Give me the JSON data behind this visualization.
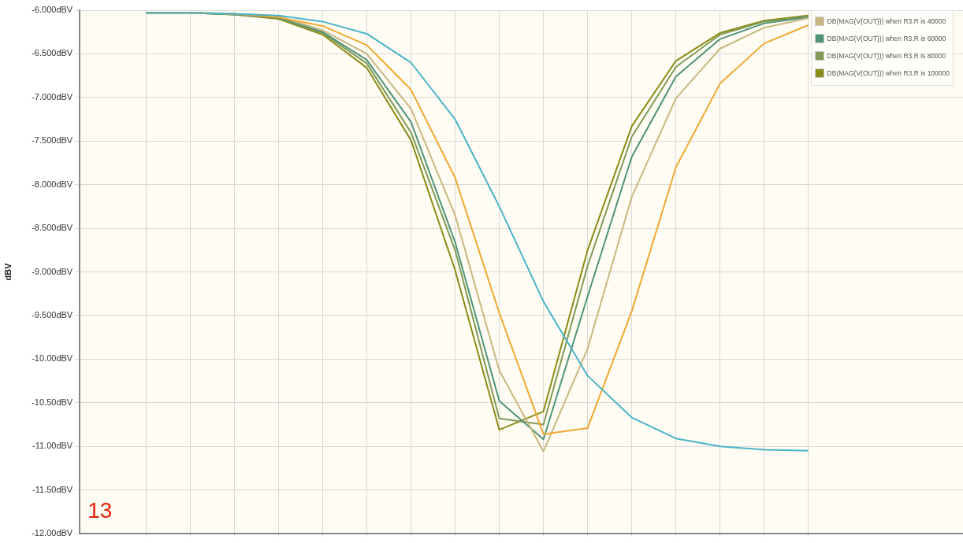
{
  "chart_data": {
    "type": "line",
    "ylabel": "dBV",
    "annotations": [
      "13"
    ],
    "categories": [
      null,
      null,
      null,
      null,
      null,
      null,
      null,
      null,
      null,
      null,
      null,
      null,
      null,
      null,
      null,
      null
    ],
    "ylim": [
      -12,
      -6
    ],
    "yticks": [
      {
        "value": -12,
        "label": "-12.00dBV"
      },
      {
        "value": -11.5,
        "label": "-11.50dBV"
      },
      {
        "value": -11,
        "label": "-11.00dBV"
      },
      {
        "value": -10.5,
        "label": "-10.50dBV"
      },
      {
        "value": -10,
        "label": "-10.00dBV"
      },
      {
        "value": -9.5,
        "label": "-9.500dBV"
      },
      {
        "value": -9,
        "label": "-9.000dBV"
      },
      {
        "value": -8.5,
        "label": "-8.500dBV"
      },
      {
        "value": -8,
        "label": "-8.000dBV"
      },
      {
        "value": -7.5,
        "label": "-7.500dBV"
      },
      {
        "value": -7,
        "label": "-7.000dBV"
      },
      {
        "value": -6.5,
        "label": "-6.500dBV"
      },
      {
        "value": -6,
        "label": "-6.000dBV"
      }
    ],
    "grid": true,
    "legend": "top right",
    "marker": "none",
    "line_style": "solid",
    "series": [
      {
        "color": "#4bb3c8",
        "values": [
          -6.03,
          -6.03,
          -6.04,
          -6.06,
          -6.13,
          -6.27,
          -6.6,
          -7.25,
          -8.25,
          -9.34,
          -10.19,
          -10.67,
          -10.91,
          -11.0,
          -11.04,
          -11.05
        ]
      },
      {
        "color": "#f0a830",
        "values": [
          -6.03,
          -6.03,
          -6.04,
          -6.08,
          -6.18,
          -6.4,
          -6.91,
          -7.92,
          -9.47,
          -10.86,
          -10.79,
          -9.45,
          -7.8,
          -6.84,
          -6.38,
          -6.17
        ]
      },
      {
        "name": "DB(MAG(V(OUT))) when R3.R is 40000",
        "color": "#c9b77f",
        "values": [
          -6.03,
          -6.03,
          -6.04,
          -6.07,
          -6.23,
          -6.5,
          -7.13,
          -8.35,
          -10.13,
          -11.06,
          -9.88,
          -8.14,
          -7.01,
          -6.44,
          -6.2,
          -6.09
        ]
      },
      {
        "name": "DB(MAG(V(OUT))) when R3.R is 60000",
        "color": "#4e9478",
        "values": [
          -6.03,
          -6.03,
          -6.05,
          -6.08,
          -6.25,
          -6.57,
          -7.28,
          -8.66,
          -10.48,
          -10.92,
          -9.28,
          -7.68,
          -6.76,
          -6.33,
          -6.15,
          -6.08
        ]
      },
      {
        "name": "DB(MAG(V(OUT))) when R3.R is 80000",
        "color": "#7f9a55",
        "values": [
          -6.03,
          -6.03,
          -6.05,
          -6.09,
          -6.26,
          -6.61,
          -7.4,
          -8.75,
          -10.68,
          -10.75,
          -8.93,
          -7.45,
          -6.65,
          -6.28,
          -6.13,
          -6.07
        ]
      },
      {
        "name": "DB(MAG(V(OUT))) when R3.R is 100000",
        "color": "#8c8b15",
        "values": [
          -6.03,
          -6.03,
          -6.05,
          -6.1,
          -6.28,
          -6.66,
          -7.49,
          -8.98,
          -10.81,
          -10.6,
          -8.75,
          -7.33,
          -6.58,
          -6.26,
          -6.12,
          -6.06
        ]
      }
    ]
  }
}
